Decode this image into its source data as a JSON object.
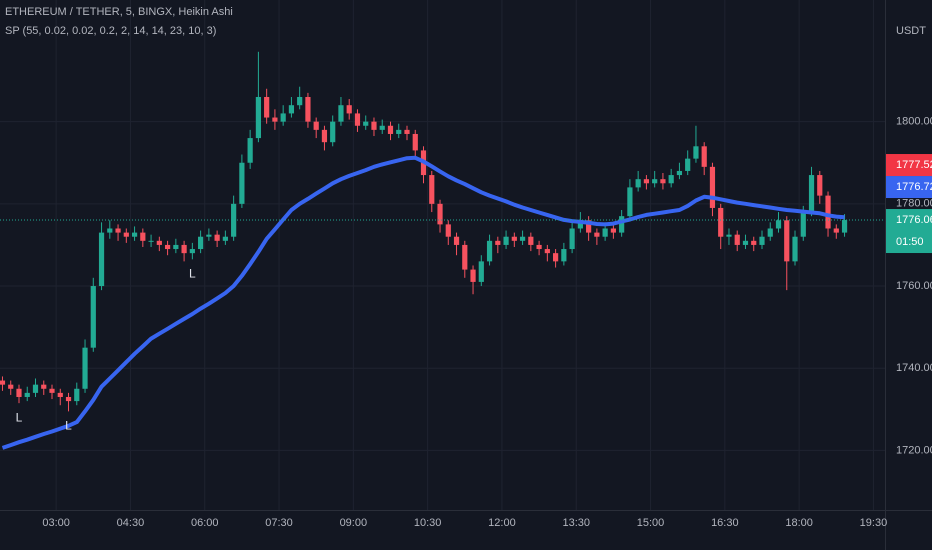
{
  "chart_data": {
    "type": "candlestick",
    "title": "ETHEREUM / TETHER, 5, BINGX, Heikin Ashi",
    "subtitle": "SP (55, 0.02, 0.02, 0.2, 2, 14, 14, 23, 10, 3)",
    "y_axis_label": "USDT",
    "up_color": "#22ab94",
    "down_color": "#f7525f",
    "grid": true,
    "xlim": [
      "01:52",
      "19:44"
    ],
    "xticks": [
      "03:00",
      "04:30",
      "06:00",
      "07:30",
      "09:00",
      "10:30",
      "12:00",
      "13:30",
      "15:00",
      "16:30",
      "18:00",
      "19:30"
    ],
    "ylim": [
      1705.5,
      1829.6
    ],
    "yticks": [
      {
        "value": 1720,
        "label": "1720.00"
      },
      {
        "value": 1740,
        "label": "1740.00"
      },
      {
        "value": 1760,
        "label": "1760.00"
      },
      {
        "value": 1780,
        "label": "1780.00"
      },
      {
        "value": 1800,
        "label": "1800.00"
      }
    ],
    "x": [
      "01:55",
      "02:05",
      "02:15",
      "02:25",
      "02:35",
      "02:45",
      "02:55",
      "03:05",
      "03:15",
      "03:25",
      "03:35",
      "03:45",
      "03:55",
      "04:05",
      "04:15",
      "04:25",
      "04:35",
      "04:45",
      "04:55",
      "05:05",
      "05:15",
      "05:25",
      "05:35",
      "05:45",
      "05:55",
      "06:05",
      "06:15",
      "06:25",
      "06:35",
      "06:45",
      "06:55",
      "07:05",
      "07:15",
      "07:25",
      "07:35",
      "07:45",
      "07:55",
      "08:05",
      "08:15",
      "08:25",
      "08:35",
      "08:45",
      "08:55",
      "09:05",
      "09:15",
      "09:25",
      "09:35",
      "09:45",
      "09:55",
      "10:05",
      "10:15",
      "10:25",
      "10:35",
      "10:45",
      "10:55",
      "11:05",
      "11:15",
      "11:25",
      "11:35",
      "11:45",
      "11:55",
      "12:05",
      "12:15",
      "12:25",
      "12:35",
      "12:45",
      "12:55",
      "13:05",
      "13:15",
      "13:25",
      "13:35",
      "13:45",
      "13:55",
      "14:05",
      "14:15",
      "14:25",
      "14:35",
      "14:45",
      "14:55",
      "15:05",
      "15:15",
      "15:25",
      "15:35",
      "15:45",
      "15:55",
      "16:05",
      "16:15",
      "16:25",
      "16:35",
      "16:45",
      "16:55",
      "17:05",
      "17:15",
      "17:25",
      "17:35",
      "17:45",
      "17:55",
      "18:05",
      "18:15",
      "18:25",
      "18:35",
      "18:45",
      "18:55"
    ],
    "open": [
      1737,
      1736,
      1735,
      1733,
      1734,
      1736,
      1735,
      1734,
      1733,
      1732,
      1735,
      1745,
      1760,
      1773,
      1774,
      1773,
      1772,
      1773,
      1771,
      1771,
      1770,
      1769,
      1770,
      1768,
      1769,
      1772,
      1772.5,
      1771,
      1772,
      1780,
      1790,
      1796,
      1806,
      1801,
      1800,
      1802,
      1804,
      1806,
      1800,
      1798,
      1795,
      1800,
      1804,
      1802,
      1799,
      1800,
      1798,
      1799,
      1797,
      1798,
      1797,
      1793,
      1787,
      1780,
      1775,
      1772,
      1770,
      1764,
      1761,
      1766,
      1771,
      1770,
      1772,
      1771,
      1772,
      1770,
      1769,
      1768,
      1766,
      1769,
      1774,
      1776,
      1773,
      1772,
      1774,
      1773,
      1777,
      1784,
      1786,
      1785,
      1786,
      1785,
      1787,
      1788,
      1791,
      1794,
      1789,
      1779,
      1772,
      1772.5,
      1770,
      1771,
      1770,
      1772,
      1774,
      1776,
      1766,
      1772,
      1778,
      1787,
      1782,
      1774,
      1773
    ],
    "high": [
      1738,
      1737,
      1736,
      1735.5,
      1737.5,
      1737,
      1736,
      1735,
      1734,
      1736.5,
      1747,
      1762,
      1775.5,
      1776,
      1775,
      1774,
      1774.5,
      1774,
      1772.5,
      1772,
      1771,
      1771.5,
      1771,
      1770.5,
      1773.5,
      1774,
      1773.5,
      1773.5,
      1782,
      1792,
      1798,
      1817,
      1808,
      1803,
      1804,
      1806,
      1808.5,
      1807,
      1801,
      1799,
      1801.5,
      1806,
      1805.5,
      1803,
      1801.5,
      1801,
      1800.5,
      1800,
      1799.5,
      1799,
      1798,
      1794,
      1788,
      1781,
      1776,
      1773,
      1771,
      1765,
      1767.5,
      1772.5,
      1772,
      1773.5,
      1773,
      1773.5,
      1773,
      1771,
      1770,
      1769,
      1770.5,
      1775.5,
      1778,
      1777,
      1774,
      1775.5,
      1775,
      1778.5,
      1786,
      1788,
      1787,
      1788,
      1787.5,
      1788.5,
      1790,
      1793,
      1799,
      1795,
      1790,
      1780,
      1774,
      1773.5,
      1772.5,
      1772,
      1773.5,
      1775.5,
      1778,
      1777,
      1773.5,
      1779.5,
      1789,
      1788,
      1783,
      1775,
      1777.5
    ],
    "low": [
      1734.5,
      1733.5,
      1731.5,
      1732,
      1733,
      1733.5,
      1732.5,
      1731,
      1729.5,
      1731,
      1734,
      1744,
      1759,
      1771.5,
      1771,
      1770.5,
      1771,
      1769.5,
      1769.5,
      1768.5,
      1767.5,
      1768,
      1766,
      1766.5,
      1768,
      1771,
      1769.5,
      1770,
      1771,
      1779,
      1788.5,
      1795,
      1799.5,
      1798,
      1799,
      1801,
      1803,
      1798.5,
      1796,
      1793,
      1794,
      1799,
      1800.5,
      1797.5,
      1798,
      1796.5,
      1797,
      1795.5,
      1796,
      1795.5,
      1791.5,
      1785,
      1778,
      1773,
      1770,
      1767.5,
      1762,
      1758,
      1760,
      1765,
      1768,
      1769,
      1769.5,
      1770,
      1768.5,
      1767.5,
      1766,
      1764.5,
      1765,
      1768,
      1773,
      1771,
      1770,
      1771,
      1771.5,
      1772,
      1776,
      1783,
      1783.5,
      1784,
      1783.5,
      1784,
      1786,
      1787,
      1790,
      1787,
      1777,
      1769,
      1770,
      1768.5,
      1769,
      1768.5,
      1769,
      1771,
      1773,
      1759,
      1765,
      1771,
      1777,
      1780,
      1772,
      1771.5,
      1772
    ],
    "close": [
      1736,
      1735,
      1733,
      1734,
      1736,
      1735,
      1734,
      1733,
      1732,
      1735,
      1745,
      1760,
      1773,
      1774,
      1773,
      1772,
      1773,
      1771,
      1771,
      1770,
      1769,
      1770,
      1768,
      1769,
      1772,
      1772.5,
      1771,
      1772,
      1780,
      1790,
      1796,
      1806,
      1801,
      1800,
      1802,
      1804,
      1806,
      1800,
      1798,
      1795,
      1800,
      1804,
      1802,
      1799,
      1800,
      1798,
      1799,
      1797,
      1798,
      1797,
      1793,
      1787,
      1780,
      1775,
      1772,
      1770,
      1764,
      1761,
      1766,
      1771,
      1770,
      1772,
      1771,
      1772,
      1770,
      1769,
      1768,
      1766,
      1769,
      1774,
      1776,
      1773,
      1772,
      1774,
      1773,
      1777,
      1784,
      1786,
      1785,
      1786,
      1785,
      1787,
      1788,
      1791,
      1794,
      1789,
      1779,
      1772,
      1772.5,
      1770,
      1771,
      1770,
      1772,
      1774,
      1776,
      1766,
      1772,
      1778,
      1787,
      1782,
      1774,
      1773,
      1776.06
    ],
    "series": [
      {
        "color": "#3865f0",
        "values": [
          1720.6,
          1721.3,
          1722,
          1722.6,
          1723.3,
          1724,
          1724.6,
          1725.3,
          1726,
          1726.9,
          1729.5,
          1732.3,
          1735.5,
          1737.5,
          1739.5,
          1741.5,
          1743.5,
          1745.3,
          1747.2,
          1748.4,
          1749.6,
          1750.8,
          1752,
          1753.2,
          1754.5,
          1755.7,
          1757,
          1758.3,
          1760,
          1762.5,
          1765.3,
          1768.3,
          1771.5,
          1773.8,
          1776.2,
          1778.5,
          1780,
          1781.2,
          1782.5,
          1783.7,
          1785,
          1786,
          1786.8,
          1787.5,
          1788.2,
          1789,
          1789.6,
          1790.1,
          1790.6,
          1791.1,
          1791.2,
          1790.3,
          1789.1,
          1787.9,
          1786.7,
          1785.7,
          1784.8,
          1783.8,
          1782.8,
          1782,
          1781.3,
          1780.6,
          1779.8,
          1779.1,
          1778.5,
          1777.9,
          1777.3,
          1776.7,
          1776.1,
          1775.8,
          1775.6,
          1775.4,
          1775.1,
          1775,
          1775.2,
          1775.7,
          1776.2,
          1776.8,
          1777.3,
          1777.6,
          1777.9,
          1778.2,
          1778.5,
          1779.5,
          1780.8,
          1781.7,
          1781.5,
          1781.1,
          1780.7,
          1780.3,
          1780,
          1779.7,
          1779.4,
          1779.1,
          1778.8,
          1778.5,
          1778.3,
          1778.1,
          1777.9,
          1777.7,
          1777.2,
          1776.9,
          1776.72
        ]
      }
    ],
    "markers": [
      {
        "x": "02:15",
        "text": "L"
      },
      {
        "x": "03:15",
        "text": "L"
      },
      {
        "x": "05:45",
        "text": "L"
      }
    ],
    "last_price": 1777.52,
    "last_price_color": "#f23645",
    "countdown": "01:50"
  }
}
